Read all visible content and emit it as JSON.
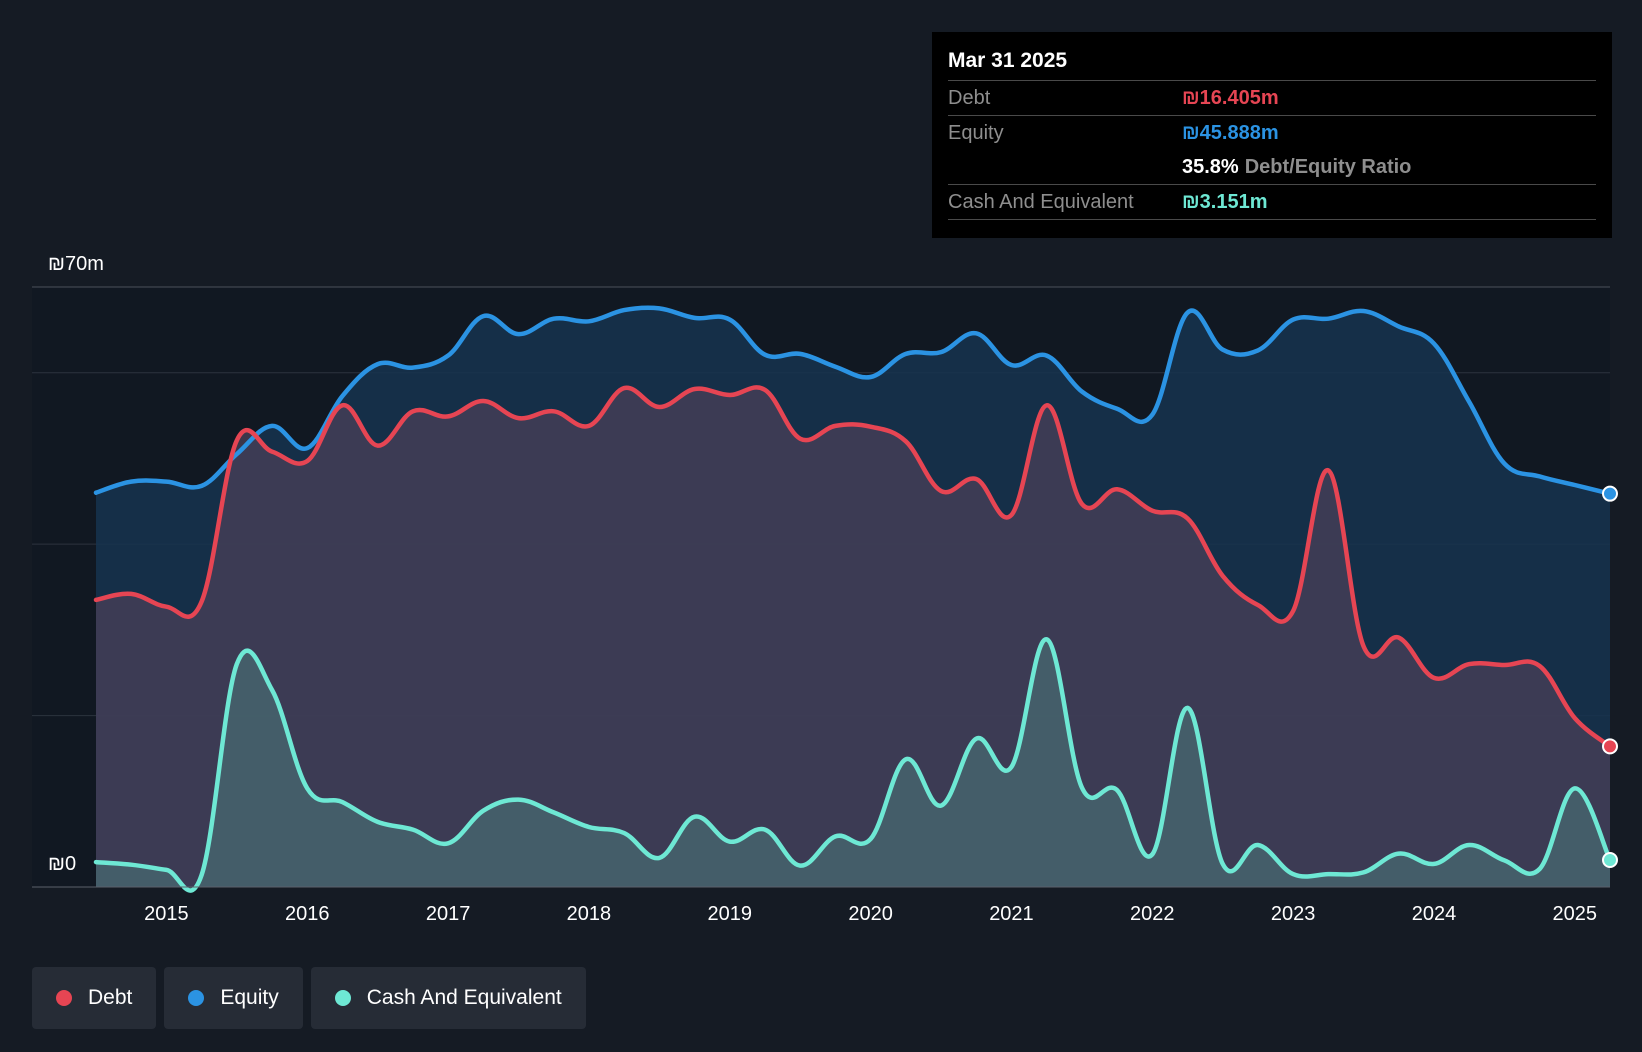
{
  "colors": {
    "debt": "#e64553",
    "equity": "#2b93e3",
    "cash": "#6ee8d4",
    "background": "#151b24",
    "plot_background": "#111822"
  },
  "tooltip": {
    "date": "Mar 31 2025",
    "debt_label": "Debt",
    "debt_value": "₪16.405m",
    "equity_label": "Equity",
    "equity_value": "₪45.888m",
    "ratio_value": "35.8%",
    "ratio_label": "Debt/Equity Ratio",
    "cash_label": "Cash And Equivalent",
    "cash_value": "₪3.151m"
  },
  "legend": {
    "debt": "Debt",
    "equity": "Equity",
    "cash": "Cash And Equivalent"
  },
  "chart_data": {
    "type": "area",
    "title": "",
    "xlabel": "",
    "ylabel": "",
    "ylim": [
      0,
      70
    ],
    "xlim": [
      2014.5,
      2025.25
    ],
    "y_tick_labels": [
      "₪0",
      "₪70m"
    ],
    "x_ticks": [
      2015,
      2016,
      2017,
      2018,
      2019,
      2020,
      2021,
      2022,
      2023,
      2024,
      2025
    ],
    "x_tick_labels": [
      "2015",
      "2016",
      "2017",
      "2018",
      "2019",
      "2020",
      "2021",
      "2022",
      "2023",
      "2024",
      "2025"
    ],
    "series": [
      {
        "name": "Equity",
        "x": [
          2014.5,
          2014.75,
          2015.0,
          2015.25,
          2015.5,
          2015.75,
          2016.0,
          2016.25,
          2016.5,
          2016.75,
          2017.0,
          2017.25,
          2017.5,
          2017.75,
          2018.0,
          2018.25,
          2018.5,
          2018.75,
          2019.0,
          2019.25,
          2019.5,
          2019.75,
          2020.0,
          2020.25,
          2020.5,
          2020.75,
          2021.0,
          2021.25,
          2021.5,
          2021.75,
          2022.0,
          2022.25,
          2022.5,
          2022.75,
          2023.0,
          2023.25,
          2023.5,
          2023.75,
          2024.0,
          2024.25,
          2024.5,
          2024.75,
          2025.0,
          2025.25
        ],
        "values": [
          46.0,
          47.3,
          47.3,
          46.8,
          50.5,
          53.8,
          51.2,
          57.3,
          61.0,
          60.6,
          62.0,
          66.6,
          64.5,
          66.3,
          66.0,
          67.3,
          67.5,
          66.4,
          66.2,
          62.1,
          62.2,
          60.7,
          59.5,
          62.2,
          62.4,
          64.6,
          60.9,
          62.0,
          57.8,
          55.8,
          55.1,
          67.0,
          62.7,
          62.6,
          66.2,
          66.3,
          67.2,
          65.4,
          63.4,
          56.6,
          49.4,
          47.9,
          46.9,
          45.888
        ]
      },
      {
        "name": "Debt",
        "x": [
          2014.5,
          2014.75,
          2015.0,
          2015.25,
          2015.5,
          2015.75,
          2016.0,
          2016.25,
          2016.5,
          2016.75,
          2017.0,
          2017.25,
          2017.5,
          2017.75,
          2018.0,
          2018.25,
          2018.5,
          2018.75,
          2019.0,
          2019.25,
          2019.5,
          2019.75,
          2020.0,
          2020.25,
          2020.5,
          2020.75,
          2021.0,
          2021.25,
          2021.5,
          2021.75,
          2022.0,
          2022.25,
          2022.5,
          2022.75,
          2023.0,
          2023.25,
          2023.5,
          2023.75,
          2024.0,
          2024.25,
          2024.5,
          2024.75,
          2025.0,
          2025.25
        ],
        "values": [
          33.5,
          34.2,
          32.7,
          33.3,
          52.1,
          50.8,
          49.7,
          56.2,
          51.5,
          55.5,
          54.9,
          56.7,
          54.7,
          55.5,
          53.8,
          58.2,
          56.0,
          58.1,
          57.4,
          58.0,
          52.3,
          53.8,
          53.7,
          52.0,
          46.2,
          47.6,
          43.4,
          56.2,
          44.7,
          46.4,
          43.9,
          43.0,
          36.3,
          32.9,
          32.2,
          48.6,
          28.1,
          29.1,
          24.4,
          26.0,
          25.9,
          25.8,
          19.7,
          16.405
        ]
      },
      {
        "name": "Cash And Equivalent",
        "x": [
          2014.5,
          2014.75,
          2015.0,
          2015.25,
          2015.5,
          2015.75,
          2016.0,
          2016.25,
          2016.5,
          2016.75,
          2017.0,
          2017.25,
          2017.5,
          2017.75,
          2018.0,
          2018.25,
          2018.5,
          2018.75,
          2019.0,
          2019.25,
          2019.5,
          2019.75,
          2020.0,
          2020.25,
          2020.5,
          2020.75,
          2021.0,
          2021.25,
          2021.5,
          2021.75,
          2022.0,
          2022.25,
          2022.5,
          2022.75,
          2023.0,
          2023.25,
          2023.5,
          2023.75,
          2024.0,
          2024.25,
          2024.5,
          2024.75,
          2025.0,
          2025.25
        ],
        "values": [
          2.9,
          2.6,
          2.0,
          1.4,
          26.0,
          23.0,
          11.5,
          9.9,
          7.6,
          6.7,
          5.1,
          8.9,
          10.2,
          8.7,
          7.0,
          6.3,
          3.4,
          8.2,
          5.3,
          6.7,
          2.5,
          5.9,
          5.6,
          14.9,
          9.5,
          17.3,
          14.0,
          28.9,
          11.6,
          11.3,
          3.8,
          20.9,
          2.7,
          4.9,
          1.5,
          1.5,
          1.7,
          3.9,
          2.7,
          4.9,
          3.1,
          2.1,
          11.5,
          3.151
        ]
      }
    ]
  }
}
